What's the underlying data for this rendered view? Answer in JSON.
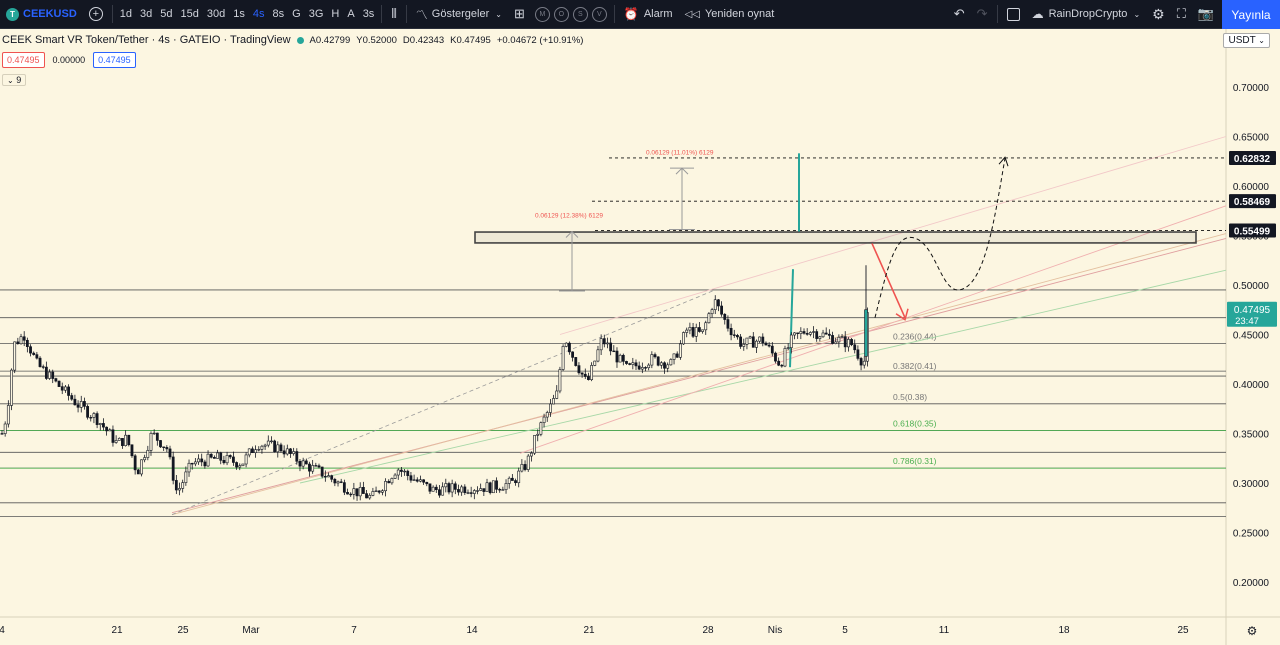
{
  "toolbar": {
    "symbol": "CEEKUSD",
    "symbol_badge": "T",
    "intervals": [
      "1d",
      "3d",
      "5d",
      "15d",
      "30d",
      "1s",
      "4s",
      "8s",
      "G",
      "3G",
      "H",
      "A",
      "3s"
    ],
    "active_interval": "4s",
    "indicators_label": "Göstergeler",
    "template_circles": [
      "M",
      "O",
      "S",
      "V"
    ],
    "alert_label": "Alarm",
    "replay_label": "Yeniden oynat",
    "layout_name": "RainDropCrypto",
    "publish_label": "Yayınla"
  },
  "legend": {
    "title": "CEEK Smart VR Token/Tether · 4s · GATEIO · TradingView",
    "open": "A0.42799",
    "high": "Y0.52000",
    "low": "D0.42343",
    "close": "K0.47495",
    "change": "+0.04672 (+10.91%)"
  },
  "price_boxes": {
    "bid": "0.47495",
    "spread": "0.00000",
    "ask": "0.47495"
  },
  "indicator_toggle": "9",
  "currency": "USDT",
  "colors": {
    "background": "#fcf6e1",
    "up": "#26a69a",
    "down": "#131722",
    "accent": "#2962ff",
    "fib_green": "#4caf50",
    "projection_red": "#ef5350"
  },
  "chart_data": {
    "type": "candlestick",
    "title": "CEEK Smart VR Token/Tether · 4s · GATEIO",
    "x_axis_labels": [
      "4",
      "21",
      "25",
      "Mar",
      "7",
      "14",
      "21",
      "28",
      "Nis",
      "5",
      "11",
      "18",
      "25"
    ],
    "y_axis_labels": [
      "0.70000",
      "0.65000",
      "0.60000",
      "0.55000",
      "0.50000",
      "0.45000",
      "0.40000",
      "0.35000",
      "0.30000",
      "0.25000",
      "0.20000"
    ],
    "ylim": [
      0.175,
      0.735
    ],
    "price_path": [
      {
        "t": 0,
        "price": 0.35
      },
      {
        "t": 5,
        "price": 0.37
      },
      {
        "t": 12,
        "price": 0.44
      },
      {
        "t": 22,
        "price": 0.45
      },
      {
        "t": 35,
        "price": 0.42
      },
      {
        "t": 55,
        "price": 0.4
      },
      {
        "t": 75,
        "price": 0.38
      },
      {
        "t": 95,
        "price": 0.365
      },
      {
        "t": 115,
        "price": 0.34
      },
      {
        "t": 125,
        "price": 0.345
      },
      {
        "t": 135,
        "price": 0.31
      },
      {
        "t": 150,
        "price": 0.35
      },
      {
        "t": 165,
        "price": 0.335
      },
      {
        "t": 175,
        "price": 0.29
      },
      {
        "t": 190,
        "price": 0.32
      },
      {
        "t": 215,
        "price": 0.325
      },
      {
        "t": 240,
        "price": 0.32
      },
      {
        "t": 255,
        "price": 0.34
      },
      {
        "t": 280,
        "price": 0.335
      },
      {
        "t": 300,
        "price": 0.32
      },
      {
        "t": 320,
        "price": 0.31
      },
      {
        "t": 345,
        "price": 0.295
      },
      {
        "t": 370,
        "price": 0.285
      },
      {
        "t": 395,
        "price": 0.315
      },
      {
        "t": 410,
        "price": 0.305
      },
      {
        "t": 430,
        "price": 0.293
      },
      {
        "t": 460,
        "price": 0.295
      },
      {
        "t": 490,
        "price": 0.296
      },
      {
        "t": 510,
        "price": 0.3
      },
      {
        "t": 525,
        "price": 0.32
      },
      {
        "t": 535,
        "price": 0.35
      },
      {
        "t": 545,
        "price": 0.37
      },
      {
        "t": 555,
        "price": 0.39
      },
      {
        "t": 562,
        "price": 0.45
      },
      {
        "t": 570,
        "price": 0.43
      },
      {
        "t": 585,
        "price": 0.4
      },
      {
        "t": 600,
        "price": 0.445
      },
      {
        "t": 625,
        "price": 0.415
      },
      {
        "t": 650,
        "price": 0.425
      },
      {
        "t": 670,
        "price": 0.42
      },
      {
        "t": 685,
        "price": 0.455
      },
      {
        "t": 700,
        "price": 0.45
      },
      {
        "t": 712,
        "price": 0.485
      },
      {
        "t": 725,
        "price": 0.46
      },
      {
        "t": 740,
        "price": 0.44
      },
      {
        "t": 760,
        "price": 0.445
      },
      {
        "t": 778,
        "price": 0.42
      },
      {
        "t": 790,
        "price": 0.445
      },
      {
        "t": 805,
        "price": 0.455
      },
      {
        "t": 820,
        "price": 0.45
      },
      {
        "t": 835,
        "price": 0.445
      },
      {
        "t": 850,
        "price": 0.44
      },
      {
        "t": 862,
        "price": 0.42
      },
      {
        "t": 866,
        "price": 0.475
      }
    ],
    "horizontal_levels": [
      0.495,
      0.467,
      0.441,
      0.413,
      0.408,
      0.38,
      0.353,
      0.331,
      0.315,
      0.28,
      0.266
    ],
    "fib_levels": [
      {
        "label": "0.236(0.44)",
        "value": 0.441
      },
      {
        "label": "0.382(0.41)",
        "value": 0.413
      },
      {
        "label": "0.5(0.38)",
        "value": 0.38
      },
      {
        "label": "0.618(0.35)",
        "value": 0.353
      },
      {
        "label": "0.786(0.31)",
        "value": 0.315
      }
    ],
    "resistance_zone": [
      0.5425,
      0.5535
    ],
    "annotations": [
      "0.06129 (12.38%) 6129",
      "0.06129 (11.01%) 6129"
    ],
    "projected_targets": [
      0.55499,
      0.58469,
      0.62832
    ],
    "last_price": "0.47495",
    "countdown": "23:47"
  }
}
